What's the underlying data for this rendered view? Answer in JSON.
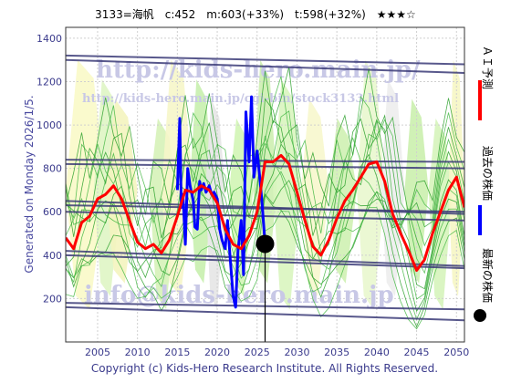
{
  "header": {
    "title": "3133=海帆　c:452　m:603(+33%)　t:598(+32%)　★★★☆"
  },
  "side_note": "Generated on Monday 2026/1/5.",
  "copyright": "Copyright (c) Kids-Hero Research Institute. All Rights Reserved.",
  "watermarks": [
    "http://kids-hero.main.jp/",
    "http://kids-hero.main.jp/cgi-bin/stock3133.html",
    "info@kids-hero.main.jp"
  ],
  "legend": [
    {
      "label": "ＡＩ予測",
      "color": "#ff0000",
      "kind": "line"
    },
    {
      "label": "過去の株価",
      "color": "#0000ff",
      "kind": "line"
    },
    {
      "label": "最新の株価",
      "color": "#000000",
      "kind": "dot"
    }
  ],
  "chart_data": {
    "type": "line",
    "title": "3133=海帆　c:452　m:603(+33%)　t:598(+32%)　★★★☆",
    "xlim": [
      2001,
      2051
    ],
    "ylim": [
      0,
      1450
    ],
    "x_ticks": [
      2005,
      2010,
      2015,
      2020,
      2025,
      2030,
      2035,
      2040,
      2045,
      2050
    ],
    "y_ticks": [
      200,
      400,
      600,
      800,
      1000,
      1200,
      1400
    ],
    "latest_price": {
      "x": 2026.0,
      "y": 452
    },
    "trend_lines": [
      {
        "y0": 1320,
        "y1": 1280
      },
      {
        "y0": 1300,
        "y1": 1240
      },
      {
        "y0": 840,
        "y1": 830
      },
      {
        "y0": 820,
        "y1": 800
      },
      {
        "y0": 650,
        "y1": 590
      },
      {
        "y0": 630,
        "y1": 600
      },
      {
        "y0": 600,
        "y1": 560
      },
      {
        "y0": 420,
        "y1": 350
      },
      {
        "y0": 400,
        "y1": 340
      },
      {
        "y0": 180,
        "y1": 150
      },
      {
        "y0": 160,
        "y1": 100
      }
    ],
    "series": [
      {
        "name": "過去の株価",
        "color": "#0000ff",
        "x": [
          2015.0,
          2015.3,
          2015.5,
          2015.7,
          2016.0,
          2016.3,
          2016.6,
          2017.0,
          2017.2,
          2017.5,
          2017.8,
          2018.0,
          2018.3,
          2018.6,
          2019.0,
          2019.3,
          2019.6,
          2020.0,
          2020.3,
          2020.6,
          2021.0,
          2021.3,
          2021.6,
          2022.0,
          2022.3,
          2022.6,
          2023.0,
          2023.3,
          2023.6,
          2024.0,
          2024.3,
          2024.6,
          2025.0,
          2025.3,
          2025.6,
          2026.0
        ],
        "y": [
          700,
          1030,
          620,
          680,
          450,
          800,
          720,
          650,
          530,
          520,
          740,
          700,
          730,
          690,
          720,
          680,
          690,
          660,
          520,
          470,
          430,
          560,
          400,
          210,
          160,
          420,
          560,
          310,
          1060,
          830,
          1130,
          760,
          880,
          770,
          650,
          452
        ]
      },
      {
        "name": "ＡＩ予測",
        "color": "#ff0000",
        "x": [
          2001,
          2002,
          2003,
          2004,
          2005,
          2006,
          2007,
          2008,
          2009,
          2010,
          2011,
          2012,
          2013,
          2014,
          2015,
          2016,
          2017,
          2018,
          2019,
          2020,
          2021,
          2022,
          2023,
          2024,
          2025,
          2026,
          2027,
          2028,
          2029,
          2030,
          2031,
          2032,
          2033,
          2034,
          2035,
          2036,
          2037,
          2038,
          2039,
          2040,
          2041,
          2042,
          2043,
          2044,
          2045,
          2046,
          2047,
          2048,
          2049,
          2050,
          2051
        ],
        "y": [
          480,
          430,
          550,
          580,
          660,
          680,
          720,
          660,
          560,
          460,
          430,
          450,
          410,
          470,
          580,
          700,
          690,
          720,
          700,
          640,
          520,
          450,
          430,
          490,
          600,
          830,
          830,
          860,
          820,
          690,
          560,
          440,
          400,
          470,
          570,
          650,
          700,
          760,
          820,
          830,
          740,
          590,
          500,
          420,
          330,
          380,
          500,
          600,
          700,
          760,
          620
        ]
      }
    ]
  }
}
